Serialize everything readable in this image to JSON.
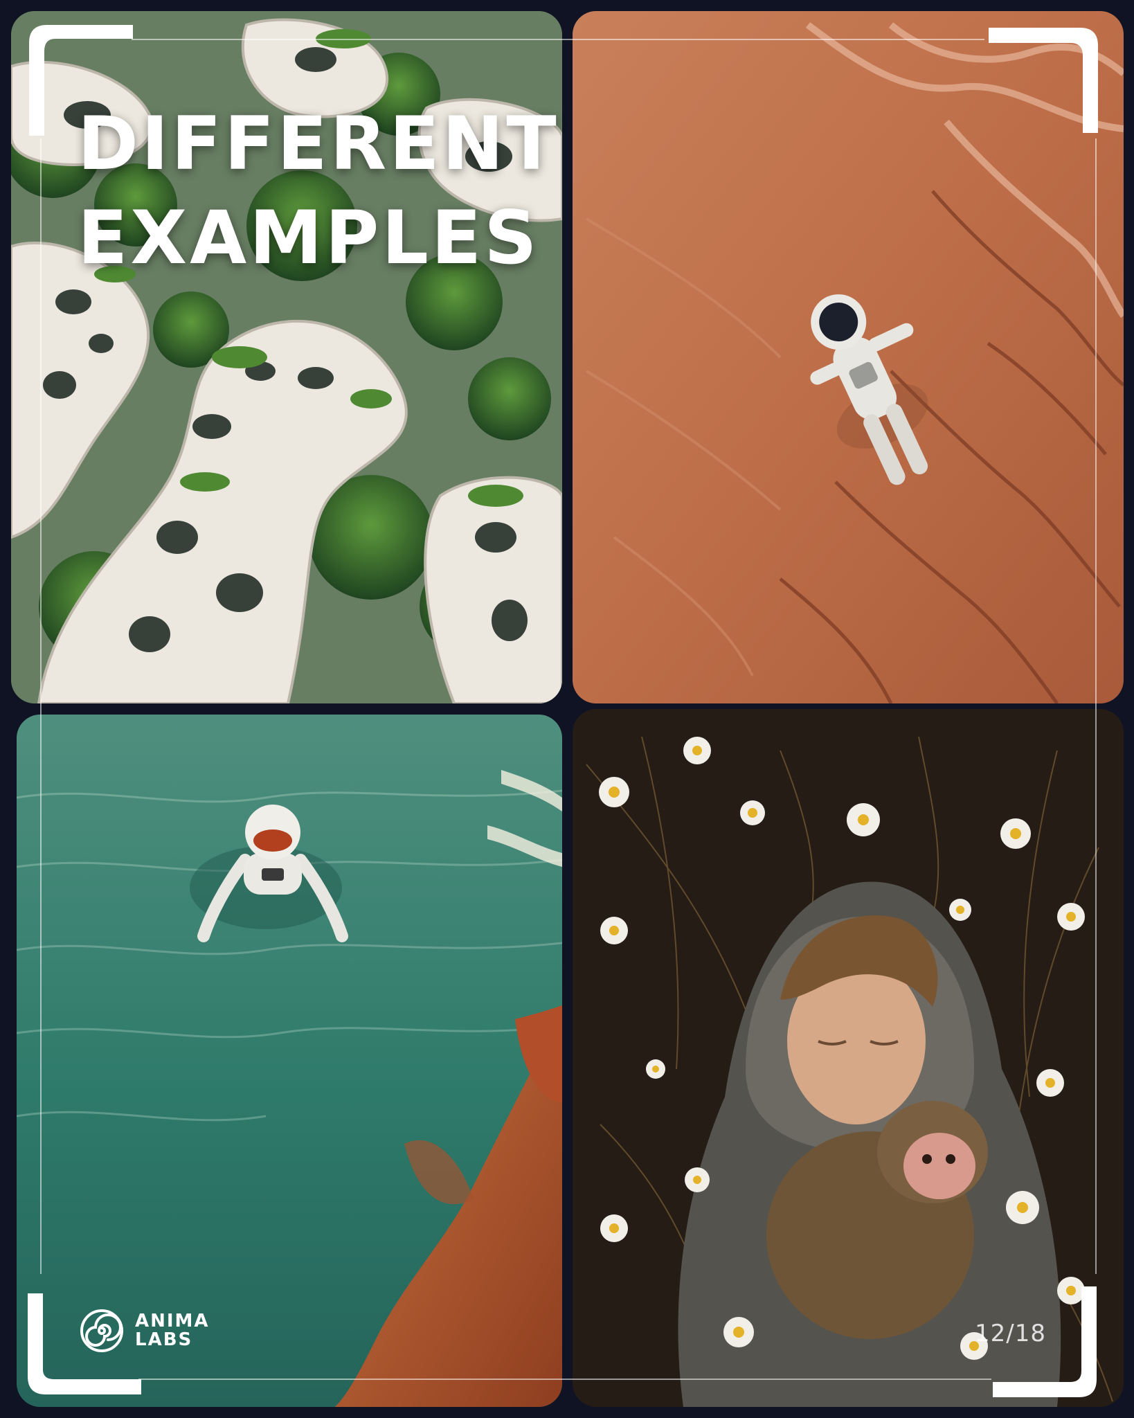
{
  "heading": {
    "line1": "DIFFERENT",
    "line2": "EXAMPLES"
  },
  "brand": {
    "line1": "ANIMA",
    "line2": "LABS",
    "icon": "spiral-logo-icon"
  },
  "page_indicator": "12/18",
  "colors": {
    "background": "#0f1324",
    "text": "#ffffff"
  },
  "tiles": [
    {
      "id": "organic-architecture",
      "palette": [
        "#2f5a2a",
        "#e6e2d8"
      ]
    },
    {
      "id": "astronaut-on-sand",
      "palette": [
        "#c2704a",
        "#e8e6e0"
      ]
    },
    {
      "id": "astronaut-in-sea",
      "palette": [
        "#2e7a6a",
        "#b8623a"
      ]
    },
    {
      "id": "boy-with-monkey",
      "palette": [
        "#2a2118",
        "#6b6b66"
      ]
    }
  ]
}
